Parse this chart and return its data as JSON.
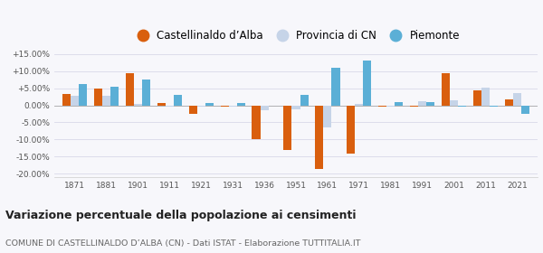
{
  "years": [
    1871,
    1881,
    1901,
    1911,
    1921,
    1931,
    1936,
    1951,
    1961,
    1971,
    1981,
    1991,
    2001,
    2011,
    2021
  ],
  "castellinaldo": [
    3.2,
    4.8,
    9.5,
    0.8,
    -2.5,
    -0.5,
    -10.0,
    -13.0,
    -18.5,
    -14.2,
    -0.3,
    -0.3,
    9.5,
    4.3,
    1.8
  ],
  "provincia_cn": [
    2.8,
    2.8,
    0.5,
    -0.3,
    -0.5,
    -0.5,
    -1.5,
    -1.2,
    -6.5,
    0.5,
    -0.4,
    1.2,
    1.5,
    5.2,
    3.5
  ],
  "piemonte": [
    6.2,
    5.3,
    7.5,
    3.0,
    0.8,
    0.6,
    -0.2,
    3.0,
    11.0,
    13.0,
    0.9,
    1.0,
    -0.5,
    -0.3,
    -2.5
  ],
  "color_castellinaldo": "#d95f0e",
  "color_provincia": "#c6d4e8",
  "color_piemonte": "#5bafd6",
  "ylim_min": -21,
  "ylim_max": 16,
  "yticks": [
    -20,
    -15,
    -10,
    -5,
    0,
    5,
    10,
    15
  ],
  "ytick_labels": [
    "-20.00%",
    "-15.00%",
    "-10.00%",
    "-5.00%",
    "0.00%",
    "+5.00%",
    "+10.00%",
    "+15.00%"
  ],
  "title": "Variazione percentuale della popolazione ai censimenti",
  "subtitle": "COMUNE DI CASTELLINALDO D’ALBA (CN) - Dati ISTAT - Elaborazione TUTTITALIA.IT",
  "legend_labels": [
    "Castellinaldo d’Alba",
    "Provincia di CN",
    "Piemonte"
  ],
  "bar_width": 0.26,
  "background_color": "#f7f7fb",
  "grid_color": "#d8d8e8",
  "spine_color": "#cccccc"
}
